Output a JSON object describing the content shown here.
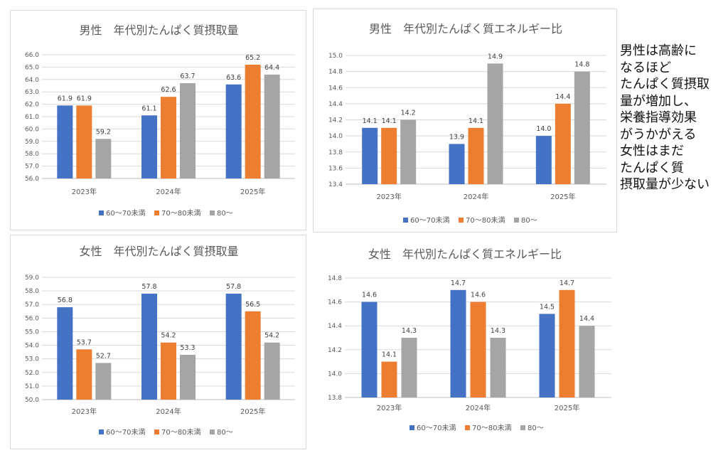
{
  "legend": [
    "60〜70未満",
    "70〜80未満",
    "80〜"
  ],
  "colors": [
    "#4472c4",
    "#ed7d31",
    "#a5a5a5"
  ],
  "note": {
    "lines": [
      "男性は高齢に",
      "なるほど",
      "たんぱく質摂取",
      "量が増加し、",
      "栄養指導効果",
      "がうかがえる",
      "女性はまだ",
      "たんぱく質",
      "摂取量が少ない"
    ]
  },
  "chart_data": [
    {
      "type": "bar",
      "title": "男性　年代別たんぱく質摂取量",
      "categories": [
        "2023年",
        "2024年",
        "2025年"
      ],
      "series": [
        {
          "name": "60〜70未満",
          "values": [
            61.9,
            61.1,
            63.6
          ]
        },
        {
          "name": "70〜80未満",
          "values": [
            61.9,
            62.6,
            65.2
          ]
        },
        {
          "name": "80〜",
          "values": [
            59.2,
            63.7,
            64.4
          ]
        }
      ],
      "ylim": [
        56.0,
        66.0
      ],
      "ystep": 1.0,
      "ydecimals": 1,
      "grid": true,
      "legend_position": "bottom"
    },
    {
      "type": "bar",
      "title": "男性　年代別たんぱく質エネルギー比",
      "categories": [
        "2023年",
        "2024年",
        "2025年"
      ],
      "series": [
        {
          "name": "60〜70未満",
          "values": [
            14.1,
            13.9,
            14.0
          ]
        },
        {
          "name": "70〜80未満",
          "values": [
            14.1,
            14.1,
            14.4
          ]
        },
        {
          "name": "80〜",
          "values": [
            14.2,
            14.9,
            14.8
          ]
        }
      ],
      "ylim": [
        13.4,
        15.0
      ],
      "ystep": 0.2,
      "ydecimals": 1,
      "grid": true,
      "legend_position": "bottom"
    },
    {
      "type": "bar",
      "title": "女性　年代別たんぱく質摂取量",
      "categories": [
        "2023年",
        "2024年",
        "2025年"
      ],
      "series": [
        {
          "name": "60〜70未満",
          "values": [
            56.8,
            57.8,
            57.8
          ]
        },
        {
          "name": "70〜80未満",
          "values": [
            53.7,
            54.2,
            56.5
          ]
        },
        {
          "name": "80〜",
          "values": [
            52.7,
            53.3,
            54.2
          ]
        }
      ],
      "ylim": [
        50.0,
        59.0
      ],
      "ystep": 1.0,
      "ydecimals": 1,
      "grid": true,
      "legend_position": "bottom"
    },
    {
      "type": "bar",
      "title": "女性　年代別たんぱく質エネルギー比",
      "categories": [
        "2023年",
        "2024年",
        "2025年"
      ],
      "series": [
        {
          "name": "60〜70未満",
          "values": [
            14.6,
            14.7,
            14.5
          ]
        },
        {
          "name": "70〜80未満",
          "values": [
            14.1,
            14.6,
            14.7
          ]
        },
        {
          "name": "80〜",
          "values": [
            14.3,
            14.3,
            14.4
          ]
        }
      ],
      "ylim": [
        13.8,
        14.8
      ],
      "ystep": 0.2,
      "ydecimals": 1,
      "grid": true,
      "legend_position": "bottom"
    }
  ]
}
